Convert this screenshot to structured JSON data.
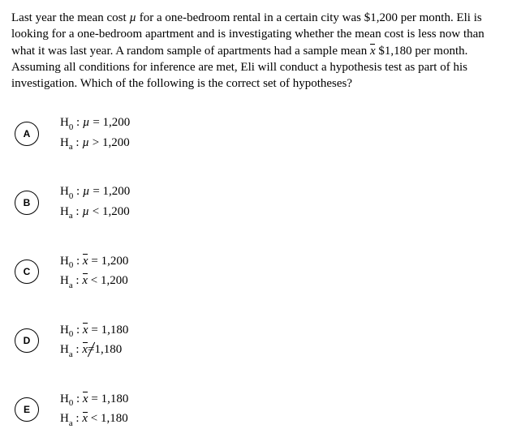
{
  "question": {
    "pre1": "Last year the mean cost ",
    "mu": "µ",
    "post1": " for a one-bedroom rental in a certain city was $1,200 per month. Eli is looking for a one-bedroom apartment and is investigating whether the mean cost is less now than what it was last year. A random sample of apartments had a sample mean ",
    "xbar": "x",
    "post2": " $1,180 per month. Assuming all conditions for inference are met, Eli will conduct a hypothesis test as part of his investigation. Which of the following is the correct set of hypotheses?"
  },
  "labels": {
    "H": "H",
    "sub0": "0",
    "suba": "a",
    "colon": " : ",
    "eq": " = ",
    "gt": " > ",
    "lt": " < ",
    "ne": " = "
  },
  "choices": [
    {
      "letter": "A",
      "sym": "mu",
      "h0_op": "eq",
      "h0_val": "1,200",
      "ha_op": "gt",
      "ha_val": "1,200"
    },
    {
      "letter": "B",
      "sym": "mu",
      "h0_op": "eq",
      "h0_val": "1,200",
      "ha_op": "lt",
      "ha_val": "1,200"
    },
    {
      "letter": "C",
      "sym": "xbar",
      "h0_op": "eq",
      "h0_val": "1,200",
      "ha_op": "lt",
      "ha_val": "1,200"
    },
    {
      "letter": "D",
      "sym": "xbar",
      "h0_op": "eq",
      "h0_val": "1,180",
      "ha_op": "ne",
      "ha_val": "1,180"
    },
    {
      "letter": "E",
      "sym": "xbar",
      "h0_op": "eq",
      "h0_val": "1,180",
      "ha_op": "lt",
      "ha_val": "1,180"
    }
  ]
}
